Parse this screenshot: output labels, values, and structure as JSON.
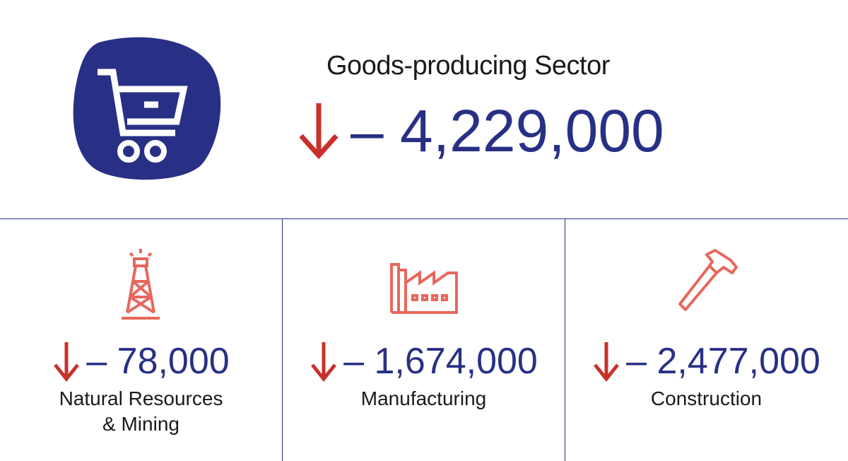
{
  "header": {
    "title": "Goods-producing Sector",
    "value": "– 4,229,000"
  },
  "panels": [
    {
      "value": "– 78,000",
      "label_line1": "Natural Resources",
      "label_line2": "& Mining",
      "icon": "oil-derrick-icon"
    },
    {
      "value": "– 1,674,000",
      "label_line1": "Manufacturing",
      "label_line2": "",
      "icon": "factory-icon"
    },
    {
      "value": "– 2,477,000",
      "label_line1": "Construction",
      "label_line2": "",
      "icon": "hammer-icon"
    }
  ],
  "colors": {
    "navy": "#283085",
    "red": "#c8302a",
    "salmon": "#e8675c",
    "text": "#1a1a1a"
  }
}
